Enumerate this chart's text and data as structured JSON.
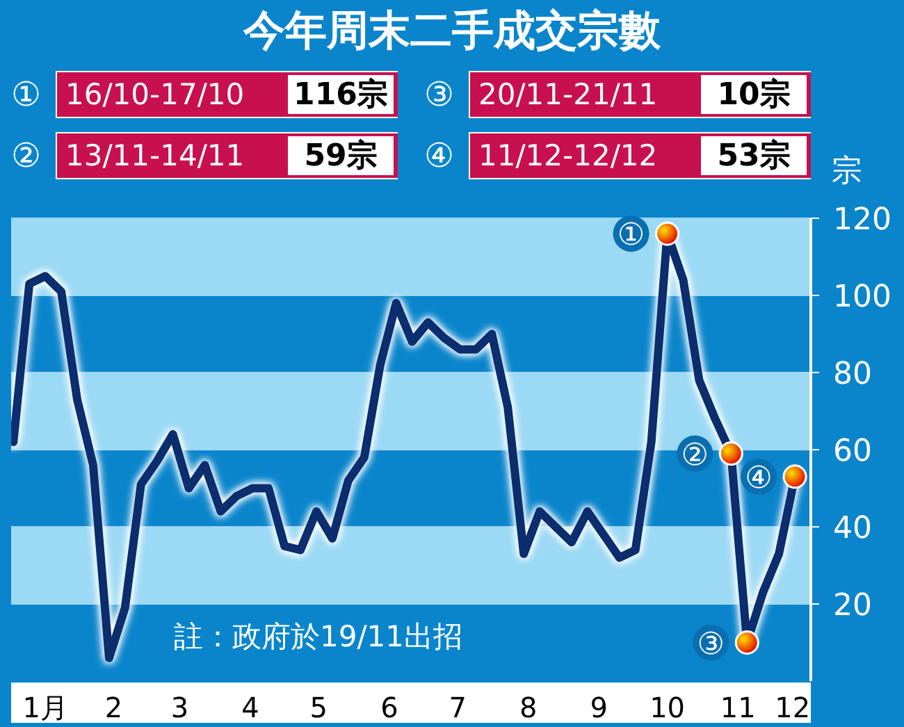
{
  "chart_data": {
    "type": "line",
    "title": "今年周末二手成交宗數",
    "ylabel": "宗",
    "x": [
      "--01-02",
      "--01-09",
      "--01-16",
      "--01-23",
      "--01-30",
      "--02-06",
      "--02-13",
      "--02-20",
      "--02-27",
      "--03-06",
      "--03-13",
      "--03-20",
      "--03-27",
      "--04-03",
      "--04-10",
      "--04-17",
      "--04-24",
      "--05-01",
      "--05-08",
      "--05-15",
      "--05-22",
      "--05-29",
      "--06-05",
      "--06-12",
      "--06-19",
      "--06-26",
      "--07-03",
      "--07-10",
      "--07-17",
      "--07-24",
      "--07-31",
      "--08-07",
      "--08-14",
      "--08-21",
      "--08-28",
      "--09-04",
      "--09-11",
      "--09-18",
      "--09-25",
      "--10-02",
      "--10-09",
      "--10-16",
      "--10-23",
      "--10-30",
      "--11-06",
      "--11-13",
      "--11-20",
      "--11-27",
      "--12-04",
      "--12-11"
    ],
    "series": [
      {
        "color": "#0c2d6e",
        "values": [
          62,
          103,
          105,
          101,
          73,
          56,
          6,
          19,
          51,
          57,
          64,
          50,
          56,
          44,
          48,
          50,
          50,
          35,
          34,
          44,
          37,
          52,
          58,
          82,
          98,
          88,
          93,
          89,
          86,
          86,
          90,
          71,
          33,
          44,
          40,
          36,
          44,
          38,
          32,
          34,
          62,
          116,
          104,
          78,
          68,
          59,
          10,
          23,
          33,
          53
        ]
      }
    ],
    "xlim": [
      "--01-01",
      "--12-18"
    ],
    "xticks": [
      {
        "value": "--01-16",
        "label": "1月"
      },
      {
        "value": "--02-15",
        "label": "2"
      },
      {
        "value": "--03-16",
        "label": "3"
      },
      {
        "value": "--04-16",
        "label": "4"
      },
      {
        "value": "--05-16",
        "label": "5"
      },
      {
        "value": "--06-16",
        "label": "6"
      },
      {
        "value": "--07-16",
        "label": "7"
      },
      {
        "value": "--08-16",
        "label": "8"
      },
      {
        "value": "--09-16",
        "label": "9"
      },
      {
        "value": "--10-16",
        "label": "10"
      },
      {
        "value": "--11-16",
        "label": "11"
      },
      {
        "value": "--12-10",
        "label": "12"
      }
    ],
    "bands": [
      {
        "axis": "y",
        "from": 20,
        "to": 40,
        "color": "#9bd9f4"
      },
      {
        "axis": "y",
        "from": 60,
        "to": 80,
        "color": "#9bd9f4"
      },
      {
        "axis": "y",
        "from": 100,
        "to": 120,
        "color": "#9bd9f4"
      }
    ],
    "ylim": [
      0,
      120
    ],
    "yticks": [
      20,
      40,
      60,
      80,
      100,
      120
    ],
    "grid": "y",
    "legend": false,
    "marker": "none",
    "line_style": "solid",
    "annotations": [
      "① 16/10-17/10 116宗",
      "② 13/11-14/11 59宗",
      "③ 20/11-21/11 10宗",
      "④ 11/12-12/12 53宗",
      "註：政府於19/11出招",
      {
        "text": "①",
        "x": "--10-16",
        "y": 116
      },
      {
        "text": "②",
        "x": "--11-13",
        "y": 59
      },
      {
        "text": "③",
        "x": "--11-20",
        "y": 10
      },
      {
        "text": "④",
        "x": "--12-11",
        "y": 53
      }
    ]
  }
}
